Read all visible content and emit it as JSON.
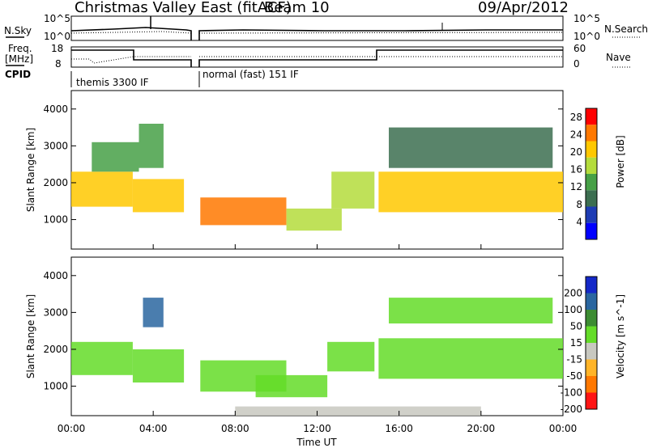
{
  "header": {
    "title": "Christmas Valley East (fitACF)",
    "beam": "Beam 10",
    "date": "09/Apr/2012"
  },
  "top_panels": {
    "nsky_label": "N.Sky",
    "nsearch_label": "N.Search",
    "noise_ticks": [
      "10^5",
      "10^0"
    ],
    "freq_label_1": "Freq.",
    "freq_label_2": "[MHz]",
    "freq_ticks": [
      "18",
      "8"
    ],
    "nave_ticks": [
      "60",
      "0"
    ],
    "nave_label": "Nave",
    "cpid_label": "CPID",
    "cpid_1": "themis 3300 IF",
    "cpid_2": "normal (fast) 151 IF"
  },
  "colors": {
    "power": [
      "#0000ff",
      "#1e3cb4",
      "#3c6e50",
      "#46a046",
      "#b4dc3c",
      "#ffc800",
      "#ff7800",
      "#ff0000"
    ],
    "velocity": [
      "#1428c8",
      "#2a66a0",
      "#3c8c32",
      "#64dc28",
      "#c8c8c0",
      "#ffb428",
      "#ff7800",
      "#ff1414"
    ],
    "ground_scatter": "#c8c8c0"
  },
  "chart_data": [
    {
      "type": "heatmap",
      "ylabel": "Slant Range [km]",
      "x_ticks": [
        "00:00",
        "04:00",
        "08:00",
        "12:00",
        "16:00",
        "20:00",
        "00:00"
      ],
      "y_ticks": [
        "1000",
        "2000",
        "3000",
        "4000"
      ],
      "ylim": [
        200,
        4500
      ],
      "colorbar_label": "Power [dB]",
      "colorbar_ticks": [
        "4",
        "8",
        "12",
        "16",
        "20",
        "24",
        "28"
      ],
      "colorbar_range": [
        0,
        30
      ],
      "bands": [
        {
          "t": [
            0.0,
            3.0
          ],
          "range": [
            1350,
            2300
          ],
          "value": 22
        },
        {
          "t": [
            1.0,
            3.3
          ],
          "range": [
            2300,
            3100
          ],
          "value": 14
        },
        {
          "t": [
            3.0,
            5.5
          ],
          "range": [
            1200,
            2100
          ],
          "value": 19
        },
        {
          "t": [
            3.3,
            4.5
          ],
          "range": [
            2400,
            3600
          ],
          "value": 12
        },
        {
          "t": [
            6.3,
            10.5
          ],
          "range": [
            850,
            1600
          ],
          "value": 24
        },
        {
          "t": [
            10.5,
            13.2
          ],
          "range": [
            700,
            1300
          ],
          "value": 15
        },
        {
          "t": [
            12.7,
            14.8
          ],
          "range": [
            1300,
            2300
          ],
          "value": 17
        },
        {
          "t": [
            15.0,
            24.0
          ],
          "range": [
            1200,
            2300
          ],
          "value": 20
        },
        {
          "t": [
            15.5,
            23.5
          ],
          "range": [
            2400,
            3500
          ],
          "value": 8
        }
      ]
    },
    {
      "type": "heatmap",
      "xlabel": "Time UT",
      "ylabel": "Slant Range [km]",
      "x_ticks": [
        "00:00",
        "04:00",
        "08:00",
        "12:00",
        "16:00",
        "20:00",
        "00:00"
      ],
      "y_ticks": [
        "1000",
        "2000",
        "3000",
        "4000"
      ],
      "ylim": [
        200,
        4500
      ],
      "colorbar_label": "Velocity [m s^-1]",
      "colorbar_ticks": [
        "200",
        "100",
        "50",
        "15",
        "-15",
        "-50",
        "-100",
        "-200"
      ],
      "colorbar_range": [
        -250,
        250
      ],
      "bands": [
        {
          "t": [
            0.0,
            3.0
          ],
          "range": [
            1300,
            2200
          ],
          "value": 0
        },
        {
          "t": [
            3.0,
            5.5
          ],
          "range": [
            1100,
            2000
          ],
          "value": 0
        },
        {
          "t": [
            3.5,
            4.5
          ],
          "range": [
            2600,
            3400
          ],
          "value": 150
        },
        {
          "t": [
            6.3,
            10.5
          ],
          "range": [
            850,
            1700
          ],
          "value": 0
        },
        {
          "t": [
            9.0,
            12.5
          ],
          "range": [
            700,
            1300
          ],
          "value": 30
        },
        {
          "t": [
            12.5,
            14.8
          ],
          "range": [
            1400,
            2200
          ],
          "value": 30
        },
        {
          "t": [
            15.0,
            24.0
          ],
          "range": [
            1200,
            2300
          ],
          "value": 0
        },
        {
          "t": [
            15.5,
            23.5
          ],
          "range": [
            2700,
            3400
          ],
          "value": 0
        },
        {
          "t": [
            8.0,
            20.0
          ],
          "range": [
            200,
            450
          ],
          "value": -60
        }
      ]
    }
  ]
}
